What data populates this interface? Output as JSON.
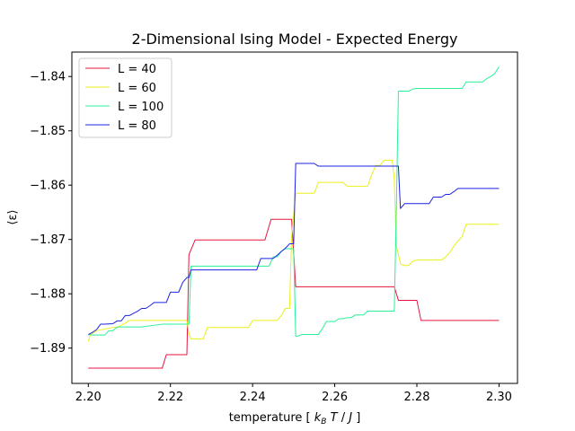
{
  "chart_data": {
    "type": "line",
    "title": "2-Dimensional Ising Model - Expected Energy",
    "xlabel": "temperature [ k_B T / J ]",
    "ylabel": "⟨ε⟩",
    "xlim": [
      2.196,
      2.3045
    ],
    "ylim": [
      -1.8965,
      -1.8355
    ],
    "x_ticks": [
      {
        "value": 2.2,
        "label": "2.20"
      },
      {
        "value": 2.22,
        "label": "2.22"
      },
      {
        "value": 2.24,
        "label": "2.24"
      },
      {
        "value": 2.26,
        "label": "2.26"
      },
      {
        "value": 2.28,
        "label": "2.28"
      },
      {
        "value": 2.3,
        "label": "2.30"
      }
    ],
    "y_ticks": [
      {
        "value": -1.84,
        "label": "−1.84"
      },
      {
        "value": -1.85,
        "label": "−1.85"
      },
      {
        "value": -1.86,
        "label": "−1.86"
      },
      {
        "value": -1.87,
        "label": "−1.87"
      },
      {
        "value": -1.88,
        "label": "−1.88"
      },
      {
        "value": -1.89,
        "label": "−1.89"
      }
    ],
    "grid": false,
    "legend_position": "upper-left",
    "series": [
      {
        "name": "L = 40",
        "color": "#e8163f",
        "x": [
          2.2,
          2.218,
          2.219,
          2.224,
          2.2245,
          2.226,
          2.243,
          2.2445,
          2.2495,
          2.2505,
          2.2745,
          2.2755,
          2.28,
          2.281,
          2.3
        ],
        "y": [
          -1.8937,
          -1.8937,
          -1.8912,
          -1.8912,
          -1.8728,
          -1.8701,
          -1.8701,
          -1.8663,
          -1.8663,
          -1.8787,
          -1.8787,
          -1.8812,
          -1.8812,
          -1.8849,
          -1.8849
        ]
      },
      {
        "name": "L = 60",
        "color": "#e9f01a",
        "x": [
          2.2,
          2.2005,
          2.202,
          2.206,
          2.207,
          2.209,
          2.21,
          2.224,
          2.2245,
          2.225,
          2.226,
          2.228,
          2.229,
          2.23,
          2.235,
          2.236,
          2.239,
          2.24,
          2.243,
          2.244,
          2.245,
          2.246,
          2.247,
          2.248,
          2.249,
          2.2495,
          2.2505,
          2.252,
          2.255,
          2.256,
          2.258,
          2.259,
          2.262,
          2.263,
          2.266,
          2.267,
          2.268,
          2.269,
          2.27,
          2.271,
          2.272,
          2.274,
          2.2745,
          2.275,
          2.2755,
          2.276,
          2.277,
          2.278,
          2.279,
          2.28,
          2.286,
          2.287,
          2.288,
          2.289,
          2.29,
          2.291,
          2.292,
          2.3
        ],
        "y": [
          -1.8888,
          -1.8875,
          -1.8868,
          -1.8862,
          -1.8862,
          -1.8854,
          -1.8849,
          -1.8849,
          -1.8873,
          -1.8883,
          -1.8883,
          -1.8883,
          -1.8862,
          -1.8862,
          -1.8862,
          -1.8862,
          -1.8862,
          -1.8849,
          -1.8849,
          -1.8849,
          -1.8849,
          -1.8849,
          -1.884,
          -1.8827,
          -1.8827,
          -1.8695,
          -1.8615,
          -1.8615,
          -1.8615,
          -1.8595,
          -1.8595,
          -1.8595,
          -1.8595,
          -1.8602,
          -1.8602,
          -1.8602,
          -1.8602,
          -1.8581,
          -1.8564,
          -1.8564,
          -1.8554,
          -1.8554,
          -1.859,
          -1.8712,
          -1.8727,
          -1.8745,
          -1.8748,
          -1.8748,
          -1.874,
          -1.8738,
          -1.8738,
          -1.8732,
          -1.8724,
          -1.8712,
          -1.8703,
          -1.8695,
          -1.8672,
          -1.8672
        ]
      },
      {
        "name": "L = 100",
        "color": "#27f197",
        "x": [
          2.2,
          2.201,
          2.204,
          2.205,
          2.206,
          2.207,
          2.212,
          2.213,
          2.218,
          2.219,
          2.224,
          2.2245,
          2.225,
          2.24,
          2.241,
          2.244,
          2.245,
          2.246,
          2.247,
          2.248,
          2.249,
          2.2495,
          2.25,
          2.2505,
          2.251,
          2.252,
          2.256,
          2.257,
          2.258,
          2.26,
          2.261,
          2.262,
          2.263,
          2.264,
          2.265,
          2.266,
          2.267,
          2.268,
          2.27,
          2.271,
          2.274,
          2.2745,
          2.275,
          2.2755,
          2.276,
          2.278,
          2.279,
          2.28,
          2.291,
          2.292,
          2.293,
          2.294,
          2.296,
          2.297,
          2.298,
          2.299,
          2.3
        ],
        "y": [
          -1.8875,
          -1.8876,
          -1.8876,
          -1.8868,
          -1.8868,
          -1.8861,
          -1.8861,
          -1.8861,
          -1.8856,
          -1.8856,
          -1.8856,
          -1.8856,
          -1.8749,
          -1.8749,
          -1.8749,
          -1.8749,
          -1.8732,
          -1.8732,
          -1.8722,
          -1.8717,
          -1.8717,
          -1.8717,
          -1.8717,
          -1.8878,
          -1.8878,
          -1.8875,
          -1.8875,
          -1.8864,
          -1.8851,
          -1.8851,
          -1.8846,
          -1.8846,
          -1.8844,
          -1.8844,
          -1.8839,
          -1.8839,
          -1.8839,
          -1.8832,
          -1.8832,
          -1.8832,
          -1.8832,
          -1.8832,
          -1.8645,
          -1.8427,
          -1.8427,
          -1.8427,
          -1.8423,
          -1.8422,
          -1.8422,
          -1.841,
          -1.841,
          -1.841,
          -1.841,
          -1.8404,
          -1.84,
          -1.8394,
          -1.8382
        ]
      },
      {
        "name": "L = 80",
        "color": "#1b23e6",
        "x": [
          2.2,
          2.201,
          2.202,
          2.203,
          2.204,
          2.206,
          2.207,
          2.208,
          2.209,
          2.21,
          2.212,
          2.213,
          2.214,
          2.215,
          2.216,
          2.217,
          2.219,
          2.22,
          2.222,
          2.223,
          2.224,
          2.2245,
          2.225,
          2.241,
          2.242,
          2.245,
          2.246,
          2.247,
          2.248,
          2.249,
          2.2495,
          2.25,
          2.2505,
          2.251,
          2.255,
          2.256,
          2.268,
          2.269,
          2.274,
          2.2745,
          2.275,
          2.2755,
          2.276,
          2.277,
          2.281,
          2.282,
          2.283,
          2.284,
          2.286,
          2.287,
          2.288,
          2.289,
          2.29,
          2.3
        ],
        "y": [
          -1.8875,
          -1.8871,
          -1.8866,
          -1.8856,
          -1.8856,
          -1.8855,
          -1.885,
          -1.885,
          -1.884,
          -1.884,
          -1.8832,
          -1.8827,
          -1.8827,
          -1.8822,
          -1.8816,
          -1.8816,
          -1.8816,
          -1.8797,
          -1.8797,
          -1.8779,
          -1.877,
          -1.877,
          -1.8756,
          -1.8756,
          -1.8735,
          -1.8735,
          -1.8729,
          -1.8722,
          -1.8716,
          -1.8708,
          -1.8708,
          -1.8708,
          -1.856,
          -1.856,
          -1.856,
          -1.8565,
          -1.8565,
          -1.8565,
          -1.8565,
          -1.8565,
          -1.8565,
          -1.8565,
          -1.8643,
          -1.8634,
          -1.8634,
          -1.8634,
          -1.8634,
          -1.8622,
          -1.8622,
          -1.8617,
          -1.8617,
          -1.8612,
          -1.8606,
          -1.8606
        ]
      }
    ]
  }
}
